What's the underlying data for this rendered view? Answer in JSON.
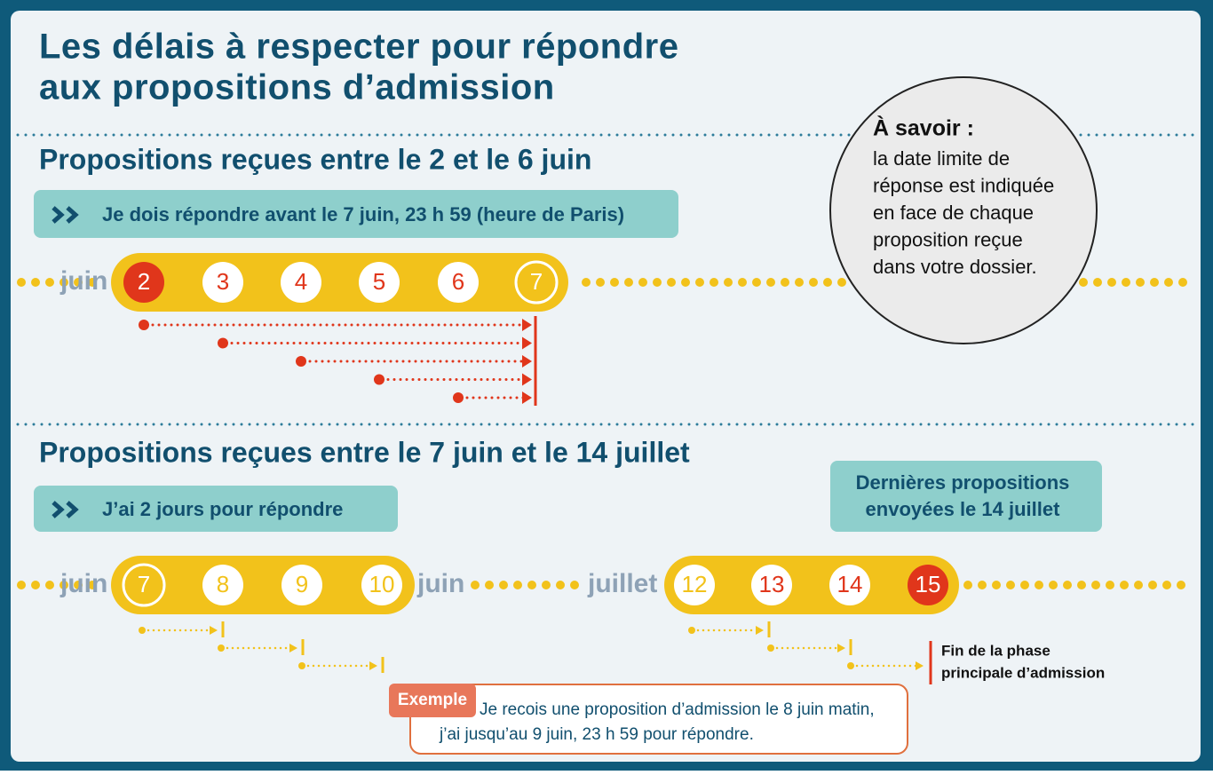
{
  "title_lines": [
    "Les délais à respecter pour répondre",
    "aux propositions d’admission"
  ],
  "section1": {
    "heading": "Propositions reçues entre le 2 et le 6 juin",
    "banner": "Je dois répondre avant le 7 juin, 23 h 59 (heure de Paris)",
    "month": "juin",
    "days": [
      "2",
      "3",
      "4",
      "5",
      "6",
      "7"
    ]
  },
  "note": {
    "heading": "À savoir :",
    "lines": [
      "la date limite de",
      "réponse est indiquée",
      "en face de chaque",
      "proposition reçue",
      "dans votre dossier."
    ]
  },
  "section2": {
    "heading": "Propositions reçues entre le 7 juin et le 14 juillet",
    "banner": "J’ai 2 jours pour répondre",
    "last_banner": [
      "Dernières propositions",
      "envoyées le 14 juillet"
    ],
    "timeline1": {
      "month": "juin",
      "days": [
        "7",
        "8",
        "9",
        "10"
      ],
      "month_after": "juin"
    },
    "timeline2": {
      "month": "juillet",
      "days": [
        "12",
        "13",
        "14",
        "15"
      ]
    },
    "end_note": [
      "Fin de la phase",
      "principale d’admission"
    ]
  },
  "example": {
    "tag": "Exemple",
    "lines": [
      "Je recois une proposition d’admission le 8 juin matin,",
      "j’ai jusqu’au 9 juin, 23 h 59 pour répondre."
    ]
  }
}
